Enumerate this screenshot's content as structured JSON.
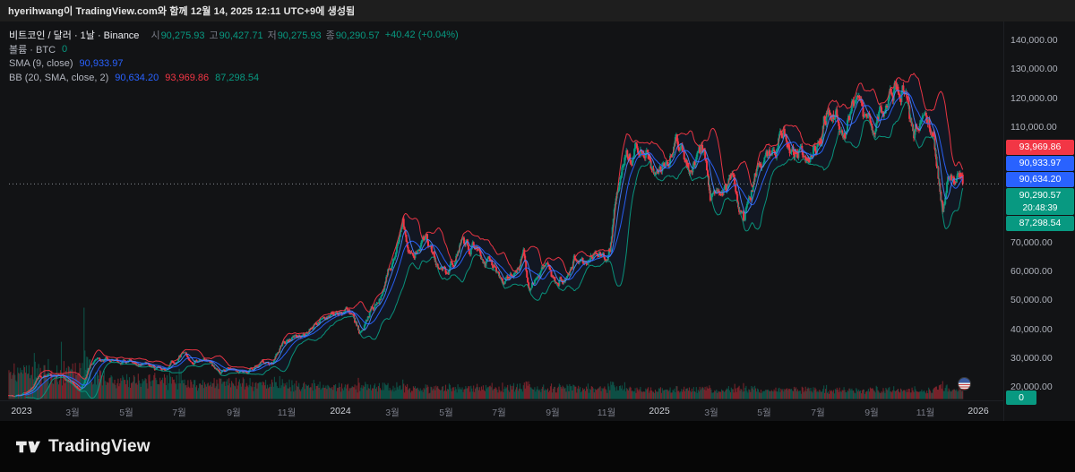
{
  "attribution": {
    "text": "hyerihwang이 TradingView.com와 함께 12월 14, 2025 12:11 UTC+9에 생성됨"
  },
  "colors": {
    "up": "#089981",
    "down": "#f23645",
    "sma": "#2962ff",
    "bb_upper": "#f23645",
    "bb_basis": "#2962ff",
    "bb_lower": "#089981",
    "volume_up": "#089981",
    "volume_down": "#f23645"
  },
  "legend": {
    "symbol_line": {
      "title": "비트코인 / 달러 · 1날 · Binance",
      "ohlc": [
        {
          "label": "시",
          "value": "90,275.93"
        },
        {
          "label": "고",
          "value": "90,427.71"
        },
        {
          "label": "저",
          "value": "90,275.93"
        },
        {
          "label": "종",
          "value": "90,290.57"
        }
      ],
      "change": "+40.42 (+0.04%)"
    },
    "volume_line": {
      "title": "볼륨 · BTC",
      "value": "0"
    },
    "sma_line": {
      "title": "SMA (9, close)",
      "value": "90,933.97"
    },
    "bb_line": {
      "title": "BB (20, SMA, close, 2)",
      "values": [
        {
          "value": "90,634.20",
          "color": "#2962ff"
        },
        {
          "value": "93,969.86",
          "color": "#f23645"
        },
        {
          "value": "87,298.54",
          "color": "#089981"
        }
      ]
    }
  },
  "price_axis": {
    "labels": [
      {
        "text": "140,000.00",
        "price": 140000
      },
      {
        "text": "130,000.00",
        "price": 130000
      },
      {
        "text": "120,000.00",
        "price": 120000
      },
      {
        "text": "110,000.00",
        "price": 110000
      },
      {
        "text": "70,000.00",
        "price": 70000
      },
      {
        "text": "60,000.00",
        "price": 60000
      },
      {
        "text": "50,000.00",
        "price": 50000
      },
      {
        "text": "40,000.00",
        "price": 40000
      },
      {
        "text": "30,000.00",
        "price": 30000
      },
      {
        "text": "20,000.00",
        "price": 20000
      }
    ],
    "badges": [
      {
        "text": "93,969.86",
        "price": 93969.86,
        "bg": "#f23645"
      },
      {
        "text": "90,933.97",
        "price": 90933.97,
        "bg": "#2962ff"
      },
      {
        "text": "90,634.20",
        "price": 90634.2,
        "bg": "#2962ff"
      },
      {
        "text": "90,290.57",
        "sub": "20:48:39",
        "price": 90290.57,
        "bg": "#089981"
      },
      {
        "text": "87,298.54",
        "price": 87298.54,
        "bg": "#089981"
      }
    ],
    "volume_badge": {
      "text": "0",
      "bg": "#089981"
    }
  },
  "time_axis": {
    "labels": [
      {
        "text": "2023",
        "day": 14,
        "major": true
      },
      {
        "text": "3월",
        "day": 73
      },
      {
        "text": "5월",
        "day": 134
      },
      {
        "text": "7월",
        "day": 195
      },
      {
        "text": "9월",
        "day": 257
      },
      {
        "text": "11월",
        "day": 318
      },
      {
        "text": "2024",
        "day": 379,
        "major": true
      },
      {
        "text": "3월",
        "day": 439
      },
      {
        "text": "5월",
        "day": 500
      },
      {
        "text": "7월",
        "day": 561
      },
      {
        "text": "9월",
        "day": 623
      },
      {
        "text": "11월",
        "day": 684
      },
      {
        "text": "2025",
        "day": 745,
        "major": true
      },
      {
        "text": "3월",
        "day": 804
      },
      {
        "text": "5월",
        "day": 865
      },
      {
        "text": "7월",
        "day": 926
      },
      {
        "text": "9월",
        "day": 988
      },
      {
        "text": "11월",
        "day": 1049
      },
      {
        "text": "2026",
        "day": 1110,
        "major": true
      }
    ]
  },
  "footer": {
    "brand": "TradingView"
  },
  "chart_data": {
    "type": "candlestick",
    "symbol": "비트코인 / 달러 (BTC/USD)",
    "exchange": "Binance",
    "interval": "1날",
    "indicators": [
      "볼륨 · BTC",
      "SMA (9, close)",
      "BB (20, SMA, close, 2)"
    ],
    "ohlc_current": {
      "open": 90275.93,
      "high": 90427.71,
      "low": 90275.93,
      "close": 90290.57,
      "change": 40.42,
      "change_pct": 0.04
    },
    "sma9_current": 90933.97,
    "bb_current": {
      "basis": 90634.2,
      "upper": 93969.86,
      "lower": 87298.54
    },
    "volume_current": 0,
    "countdown": "20:48:39",
    "price_axis_range": [
      20000,
      140000
    ],
    "start_date": "2022-12-18",
    "end_date": "2025-12-14",
    "days_total": 1092,
    "close_control_points": [
      [
        0,
        16800
      ],
      [
        14,
        16600
      ],
      [
        27,
        19900
      ],
      [
        34,
        22700
      ],
      [
        48,
        23100
      ],
      [
        60,
        24300
      ],
      [
        68,
        21900
      ],
      [
        82,
        20200
      ],
      [
        94,
        28300
      ],
      [
        117,
        30600
      ],
      [
        129,
        27700
      ],
      [
        139,
        29400
      ],
      [
        160,
        26900
      ],
      [
        179,
        25500
      ],
      [
        197,
        31100
      ],
      [
        211,
        30200
      ],
      [
        225,
        29200
      ],
      [
        242,
        26100
      ],
      [
        267,
        25100
      ],
      [
        287,
        27200
      ],
      [
        302,
        28400
      ],
      [
        310,
        34100
      ],
      [
        326,
        36800
      ],
      [
        340,
        37800
      ],
      [
        355,
        43900
      ],
      [
        365,
        42200
      ],
      [
        386,
        46900
      ],
      [
        401,
        39600
      ],
      [
        421,
        49800
      ],
      [
        437,
        62400
      ],
      [
        451,
        73000
      ],
      [
        457,
        61900
      ],
      [
        477,
        70800
      ],
      [
        500,
        58300
      ],
      [
        520,
        71300
      ],
      [
        537,
        67700
      ],
      [
        554,
        61000
      ],
      [
        565,
        55800
      ],
      [
        589,
        68100
      ],
      [
        596,
        53900
      ],
      [
        616,
        64400
      ],
      [
        628,
        54200
      ],
      [
        649,
        65800
      ],
      [
        662,
        60500
      ],
      [
        677,
        67000
      ],
      [
        688,
        69400
      ],
      [
        705,
        98900
      ],
      [
        718,
        102900
      ],
      [
        730,
        106200
      ],
      [
        743,
        92800
      ],
      [
        764,
        108300
      ],
      [
        778,
        97800
      ],
      [
        796,
        98500
      ],
      [
        803,
        84400
      ],
      [
        815,
        83000
      ],
      [
        827,
        87600
      ],
      [
        842,
        76400
      ],
      [
        857,
        94700
      ],
      [
        876,
        104200
      ],
      [
        886,
        111000
      ],
      [
        902,
        105200
      ],
      [
        917,
        99800
      ],
      [
        930,
        108900
      ],
      [
        939,
        119800
      ],
      [
        950,
        117200
      ],
      [
        957,
        113600
      ],
      [
        970,
        124300
      ],
      [
        978,
        112100
      ],
      [
        988,
        108600
      ],
      [
        1005,
        117300
      ],
      [
        1023,
        125600
      ],
      [
        1034,
        104900
      ],
      [
        1046,
        110200
      ],
      [
        1058,
        106000
      ],
      [
        1069,
        81900
      ],
      [
        1075,
        91400
      ],
      [
        1082,
        86500
      ],
      [
        1087,
        91800
      ],
      [
        1092,
        90290.57
      ]
    ]
  }
}
